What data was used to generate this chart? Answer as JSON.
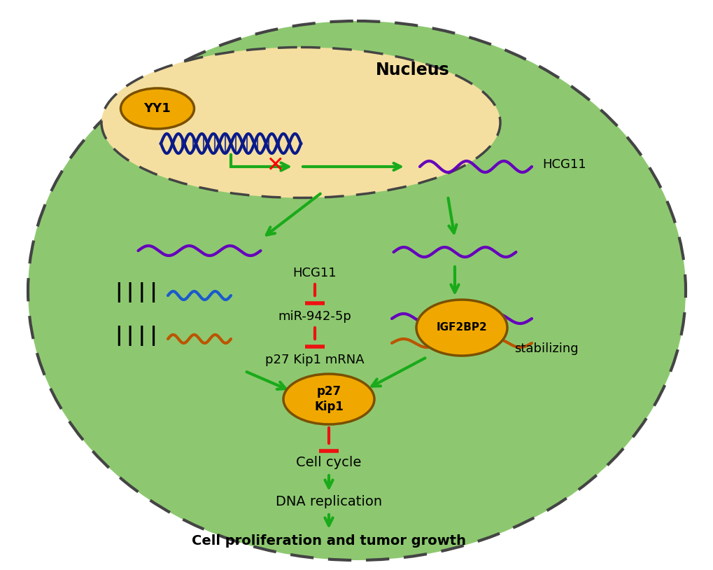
{
  "bg_color": "#ffffff",
  "cell_color": "#8dc870",
  "nucleus_color": "#f5dfa0",
  "ellipse_border": "#444444",
  "yy1_color": "#f0a800",
  "yy1_text": "YY1",
  "yy1_border": "#7a5000",
  "igf2bp2_color": "#f0a800",
  "igf2bp2_text": "IGF2BP2",
  "p27_color": "#f0a800",
  "p27_text": "p27\nKip1",
  "p27_border": "#7a5000",
  "hcg11_nucleus_label": "HCG11",
  "nucleus_label": "Nucleus",
  "mir_label": "miR-942-5p",
  "p27kip1_label": "p27 Kip1 mRNA",
  "hcg11_mid_label": "HCG11",
  "stabilizing_label": "stabilizing",
  "cell_cycle_label": "Cell cycle",
  "dna_rep_label": "DNA replication",
  "prolif_label": "Cell proliferation and tumor growth",
  "arrow_color": "#1aaa1a",
  "inhibit_color": "#ee1111",
  "dna_color": "#0a1a8a",
  "purple_color": "#6600bb",
  "blue_color": "#1a5acc",
  "orange_color": "#bb5500",
  "black": "#000000"
}
